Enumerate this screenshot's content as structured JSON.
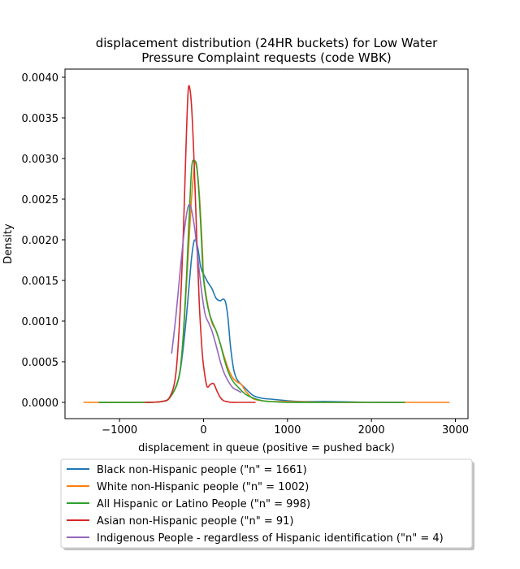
{
  "chart_data": {
    "type": "line",
    "title_line1": "displacement distribution (24HR buckets) for Low Water",
    "title_line2": "Pressure Complaint requests (code WBK)",
    "xlabel": "displacement in queue (positive = pushed back)",
    "ylabel": "Density",
    "xlim": [
      -1650,
      3150
    ],
    "ylim": [
      -0.0002,
      0.0041
    ],
    "xticks": [
      -1000,
      0,
      1000,
      2000,
      3000
    ],
    "xtick_labels": [
      "−1000",
      "0",
      "1000",
      "2000",
      "3000"
    ],
    "yticks": [
      0,
      0.0005,
      0.001,
      0.0015,
      0.002,
      0.0025,
      0.003,
      0.0035,
      0.004
    ],
    "ytick_labels": [
      "0.0000",
      "0.0005",
      "0.0010",
      "0.0015",
      "0.0020",
      "0.0025",
      "0.0030",
      "0.0035",
      "0.0040"
    ],
    "grid": false,
    "legend_position": "below plot",
    "series": [
      {
        "name": "Black non-Hispanic people (\"n\" = 1661)",
        "color": "#1f77b4",
        "x": [
          -1250,
          -700,
          -500,
          -400,
          -300,
          -250,
          -200,
          -150,
          -120,
          -100,
          -80,
          -60,
          -40,
          -20,
          0,
          50,
          100,
          150,
          200,
          230,
          260,
          290,
          320,
          360,
          400,
          450,
          500,
          550,
          600,
          700,
          800,
          900,
          1000,
          1200,
          1500,
          2000,
          2400
        ],
        "y": [
          0,
          0,
          1e-05,
          6e-05,
          0.00028,
          0.0006,
          0.0011,
          0.0017,
          0.00195,
          0.002,
          0.00195,
          0.00185,
          0.0017,
          0.00162,
          0.00158,
          0.00148,
          0.0014,
          0.00128,
          0.00125,
          0.00127,
          0.00124,
          0.00105,
          0.0007,
          0.0004,
          0.00028,
          0.00022,
          0.00017,
          0.00012,
          8e-05,
          5e-05,
          4e-05,
          3e-05,
          2e-05,
          1e-05,
          1e-05,
          0,
          0
        ]
      },
      {
        "name": "White non-Hispanic people (\"n\" = 1002)",
        "color": "#ff7f0e",
        "x": [
          -1430,
          -800,
          -500,
          -400,
          -300,
          -250,
          -200,
          -150,
          -120,
          -100,
          -70,
          -40,
          -10,
          0,
          50,
          100,
          150,
          200,
          250,
          300,
          350,
          400,
          450,
          500,
          550,
          600,
          700,
          800,
          1000,
          1500,
          2000,
          2500,
          2930
        ],
        "y": [
          0,
          0,
          1e-05,
          6e-05,
          0.00028,
          0.0007,
          0.0015,
          0.0024,
          0.0028,
          0.00295,
          0.0028,
          0.0024,
          0.0018,
          0.00155,
          0.0012,
          0.00098,
          0.00088,
          0.00072,
          0.00055,
          0.0004,
          0.0003,
          0.00025,
          0.00022,
          0.00014,
          8e-05,
          4e-05,
          2e-05,
          1e-05,
          1e-05,
          0,
          0,
          0,
          0
        ]
      },
      {
        "name": "All Hispanic or Latino People (\"n\" = 998)",
        "color": "#2ca02c",
        "x": [
          -1250,
          -700,
          -500,
          -400,
          -300,
          -250,
          -200,
          -170,
          -140,
          -110,
          -80,
          -50,
          -20,
          0,
          50,
          100,
          150,
          200,
          250,
          300,
          350,
          400,
          500,
          600,
          700,
          800,
          1000,
          1500,
          2000,
          2400
        ],
        "y": [
          0,
          0,
          1e-05,
          6e-05,
          0.00028,
          0.0007,
          0.0016,
          0.0023,
          0.0029,
          0.00297,
          0.0029,
          0.0025,
          0.0019,
          0.00152,
          0.00118,
          0.001,
          0.00088,
          0.00072,
          0.00052,
          0.00036,
          0.00026,
          0.0002,
          0.0001,
          5e-05,
          2e-05,
          1e-05,
          0,
          0,
          0,
          0
        ]
      },
      {
        "name": "Asian non-Hispanic people (\"n\" = 91)",
        "color": "#d62728",
        "x": [
          -700,
          -500,
          -400,
          -330,
          -280,
          -240,
          -210,
          -185,
          -165,
          -140,
          -110,
          -80,
          -50,
          -20,
          0,
          40,
          80,
          120,
          160,
          200,
          240,
          280,
          330,
          400,
          480,
          550,
          620
        ],
        "y": [
          0,
          1e-05,
          7e-05,
          0.00035,
          0.0011,
          0.0021,
          0.0031,
          0.0038,
          0.00387,
          0.0036,
          0.0029,
          0.002,
          0.0012,
          0.00068,
          0.00045,
          0.0002,
          0.00022,
          0.00023,
          0.00014,
          6e-05,
          2e-05,
          1e-05,
          0,
          0,
          0,
          0,
          0
        ]
      },
      {
        "name": "Indigenous People - regardless of Hispanic identification (\"n\" = 4)",
        "color": "#9467bd",
        "x": [
          -380,
          -330,
          -280,
          -230,
          -190,
          -160,
          -130,
          -100,
          -60,
          -20,
          20,
          60,
          100,
          150,
          200,
          250,
          300,
          350,
          400,
          450
        ],
        "y": [
          0.0006,
          0.00105,
          0.0016,
          0.0021,
          0.00238,
          0.00243,
          0.0023,
          0.0021,
          0.0017,
          0.00134,
          0.00108,
          0.00098,
          0.00088,
          0.0007,
          0.0005,
          0.00035,
          0.00025,
          0.00018,
          0.00015,
          0.00012
        ]
      }
    ]
  }
}
